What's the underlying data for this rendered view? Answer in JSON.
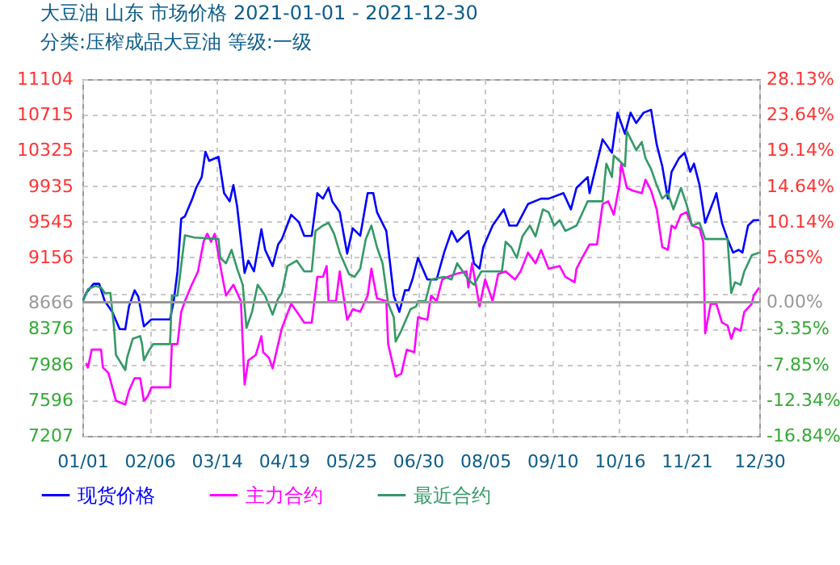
{
  "chart_data": {
    "type": "line",
    "title": "大豆油 山东 市场价格 2021-01-01 - 2021-12-30",
    "subtitle": "分类:压榨成品大豆油 等级:一级",
    "xlim": [
      "2021-01-01",
      "2021-12-30"
    ],
    "xticks": [
      {
        "value": "2021-01-01",
        "label": "01/01"
      },
      {
        "value": "2021-02-06",
        "label": "02/06"
      },
      {
        "value": "2021-03-14",
        "label": "03/14"
      },
      {
        "value": "2021-04-19",
        "label": "04/19"
      },
      {
        "value": "2021-05-25",
        "label": "05/25"
      },
      {
        "value": "2021-06-30",
        "label": "06/30"
      },
      {
        "value": "2021-08-05",
        "label": "08/05"
      },
      {
        "value": "2021-09-10",
        "label": "09/10"
      },
      {
        "value": "2021-10-16",
        "label": "10/16"
      },
      {
        "value": "2021-11-21",
        "label": "11/21"
      },
      {
        "value": "2021-12-30",
        "label": "12/30"
      }
    ],
    "ylim": [
      7207,
      11104
    ],
    "yticks": [
      7207,
      7596,
      7986,
      8376,
      8666,
      {
        "value": 8766,
        "label": null
      },
      9156,
      9545,
      9935,
      10325,
      10715,
      11104
    ],
    "y2lim": [
      -16.84,
      28.13
    ],
    "y2ticks": [
      {
        "value": -16.84,
        "label": "-16.84%"
      },
      {
        "value": -12.34,
        "label": "-12.34%"
      },
      {
        "value": -7.85,
        "label": "-7.85%"
      },
      {
        "value": -3.35,
        "label": "-3.35%"
      },
      {
        "value": 0,
        "label": "0.00%"
      },
      {
        "value": 5.65,
        "label": "5.65%"
      },
      {
        "value": 10.14,
        "label": "10.14%"
      },
      {
        "value": 14.64,
        "label": "14.64%"
      },
      {
        "value": 19.14,
        "label": "19.14%"
      },
      {
        "value": 23.64,
        "label": "23.64%"
      },
      {
        "value": 28.13,
        "label": "28.13%"
      }
    ],
    "grid": true,
    "legend": "bottom",
    "ref_lines": [
      {
        "axis": "y2",
        "value": 0,
        "color": "#999999"
      }
    ],
    "series": [
      {
        "name": "现货价格",
        "color": "#0000ff",
        "x": [
          "2021-01-01",
          "2021-01-03",
          "2021-01-07",
          "2021-01-10",
          "2021-01-13",
          "2021-01-17",
          "2021-01-21",
          "2021-01-24",
          "2021-01-26",
          "2021-01-29",
          "2021-01-31",
          "2021-02-03",
          "2021-02-07",
          "2021-02-17",
          "2021-02-19",
          "2021-02-21",
          "2021-02-23",
          "2021-02-25",
          "2021-03-01",
          "2021-03-03",
          "2021-03-06",
          "2021-03-08",
          "2021-03-10",
          "2021-03-15",
          "2021-03-18",
          "2021-03-21",
          "2021-03-23",
          "2021-03-25",
          "2021-03-29",
          "2021-03-31",
          "2021-04-03",
          "2021-04-07",
          "2021-04-09",
          "2021-04-13",
          "2021-04-16",
          "2021-04-18",
          "2021-04-23",
          "2021-04-27",
          "2021-04-30",
          "2021-05-04",
          "2021-05-07",
          "2021-05-10",
          "2021-05-13",
          "2021-05-15",
          "2021-05-19",
          "2021-05-23",
          "2021-05-26",
          "2021-05-30",
          "2021-06-03",
          "2021-06-06",
          "2021-06-08",
          "2021-06-13",
          "2021-06-17",
          "2021-06-20",
          "2021-06-23",
          "2021-06-25",
          "2021-06-27",
          "2021-06-30",
          "2021-07-05",
          "2021-07-10",
          "2021-07-14",
          "2021-07-18",
          "2021-07-21",
          "2021-07-27",
          "2021-07-30",
          "2021-08-02",
          "2021-08-04",
          "2021-08-09",
          "2021-08-15",
          "2021-08-18",
          "2021-08-22",
          "2021-08-28",
          "2021-09-04",
          "2021-09-08",
          "2021-09-16",
          "2021-09-20",
          "2021-09-23",
          "2021-09-29",
          "2021-09-30",
          "2021-10-07",
          "2021-10-12",
          "2021-10-15",
          "2021-10-19",
          "2021-10-22",
          "2021-10-25",
          "2021-10-29",
          "2021-11-02",
          "2021-11-05",
          "2021-11-08",
          "2021-11-11",
          "2021-11-13",
          "2021-11-17",
          "2021-11-20",
          "2021-11-23",
          "2021-11-25",
          "2021-11-28",
          "2021-12-01",
          "2021-12-06",
          "2021-12-07",
          "2021-12-10",
          "2021-12-13",
          "2021-12-16",
          "2021-12-19",
          "2021-12-21",
          "2021-12-24",
          "2021-12-27",
          "2021-12-30"
        ],
        "values": [
          8666,
          8767,
          8868,
          8868,
          8679,
          8562,
          8373,
          8373,
          8621,
          8797,
          8726,
          8403,
          8479,
          8479,
          8679,
          9004,
          9580,
          9605,
          9798,
          9916,
          10034,
          10311,
          10211,
          10255,
          9858,
          9769,
          9946,
          9711,
          8986,
          9121,
          9004,
          9463,
          9239,
          9062,
          9298,
          9357,
          9622,
          9545,
          9392,
          9392,
          9858,
          9798,
          9916,
          9769,
          9651,
          9198,
          9474,
          9392,
          9858,
          9858,
          9651,
          9445,
          8739,
          8562,
          8797,
          8797,
          8915,
          9151,
          8915,
          8915,
          9209,
          9445,
          9327,
          9445,
          9092,
          9033,
          9268,
          9504,
          9681,
          9504,
          9504,
          9739,
          9798,
          9798,
          9858,
          9681,
          9916,
          10034,
          9858,
          10446,
          10299,
          10737,
          10506,
          10737,
          10624,
          10737,
          10769,
          10391,
          10152,
          9798,
          10092,
          10240,
          10299,
          10092,
          10181,
          9946,
          9534,
          9798,
          9858,
          9534,
          9357,
          9209,
          9239,
          9209,
          9504,
          9563,
          9563
        ]
      },
      {
        "name": "主力合约",
        "color": "#ff00ff",
        "x": [
          "2021-01-03",
          "2021-01-04",
          "2021-01-06",
          "2021-01-11",
          "2021-01-12",
          "2021-01-15",
          "2021-01-19",
          "2021-01-24",
          "2021-01-26",
          "2021-01-29",
          "2021-02-01",
          "2021-02-03",
          "2021-02-05",
          "2021-02-07",
          "2021-02-17",
          "2021-02-18",
          "2021-02-21",
          "2021-02-23",
          "2021-02-25",
          "2021-02-28",
          "2021-03-04",
          "2021-03-07",
          "2021-03-09",
          "2021-03-11",
          "2021-03-13",
          "2021-03-16",
          "2021-03-19",
          "2021-03-23",
          "2021-03-27",
          "2021-03-29",
          "2021-03-31",
          "2021-04-04",
          "2021-04-07",
          "2021-04-08",
          "2021-04-11",
          "2021-04-13",
          "2021-04-16",
          "2021-04-18",
          "2021-04-23",
          "2021-04-26",
          "2021-04-30",
          "2021-05-04",
          "2021-05-07",
          "2021-05-10",
          "2021-05-12",
          "2021-05-13",
          "2021-05-17",
          "2021-05-19",
          "2021-05-23",
          "2021-05-26",
          "2021-05-30",
          "2021-06-03",
          "2021-06-05",
          "2021-06-08",
          "2021-06-13",
          "2021-06-14",
          "2021-06-18",
          "2021-06-21",
          "2021-06-24",
          "2021-06-28",
          "2021-06-30",
          "2021-07-05",
          "2021-07-07",
          "2021-07-10",
          "2021-07-13",
          "2021-07-16",
          "2021-07-20",
          "2021-07-26",
          "2021-07-27",
          "2021-07-29",
          "2021-08-02",
          "2021-08-05",
          "2021-08-09",
          "2021-08-12",
          "2021-08-16",
          "2021-08-21",
          "2021-08-24",
          "2021-08-28",
          "2021-09-01",
          "2021-09-04",
          "2021-09-08",
          "2021-09-14",
          "2021-09-17",
          "2021-09-22",
          "2021-09-23",
          "2021-09-26",
          "2021-09-30",
          "2021-10-04",
          "2021-10-07",
          "2021-10-10",
          "2021-10-13",
          "2021-10-16",
          "2021-10-17",
          "2021-10-20",
          "2021-10-23",
          "2021-10-28",
          "2021-10-30",
          "2021-11-02",
          "2021-11-05",
          "2021-11-08",
          "2021-11-11",
          "2021-11-13",
          "2021-11-15",
          "2021-11-18",
          "2021-11-21",
          "2021-11-24",
          "2021-11-28",
          "2021-11-30",
          "2021-12-01",
          "2021-12-04",
          "2021-12-07",
          "2021-12-10",
          "2021-12-13",
          "2021-12-15",
          "2021-12-17",
          "2021-12-20",
          "2021-12-22",
          "2021-12-26",
          "2021-12-27",
          "2021-12-30"
        ],
        "values": [
          8002,
          7953,
          8149,
          8149,
          7953,
          7894,
          7590,
          7549,
          7700,
          7838,
          7838,
          7590,
          7637,
          7737,
          7737,
          8209,
          8209,
          8562,
          8679,
          8827,
          9004,
          9327,
          9415,
          9327,
          9415,
          9062,
          8739,
          8857,
          8679,
          7767,
          8032,
          8091,
          8297,
          8120,
          8061,
          7944,
          8209,
          8385,
          8650,
          8562,
          8444,
          8444,
          8944,
          8944,
          9062,
          8679,
          8679,
          9004,
          8474,
          8591,
          8562,
          8739,
          9033,
          8709,
          8679,
          8209,
          7855,
          7885,
          8149,
          8120,
          8502,
          8474,
          8739,
          8679,
          8915,
          8944,
          8974,
          9004,
          8827,
          9092,
          8621,
          8915,
          8679,
          8974,
          9004,
          8915,
          9004,
          9209,
          9092,
          9239,
          9033,
          9062,
          8944,
          8885,
          9033,
          9151,
          9298,
          9298,
          9739,
          9769,
          9622,
          9946,
          10181,
          9916,
          9887,
          9858,
          10005,
          9887,
          9681,
          9269,
          9239,
          9504,
          9474,
          9622,
          9651,
          9504,
          9474,
          9327,
          8326,
          8650,
          8650,
          8444,
          8414,
          8267,
          8385,
          8355,
          8562,
          8650,
          8739,
          8827
        ]
      },
      {
        "name": "最近合约",
        "color": "#339966",
        "x": [
          "2021-01-01",
          "2021-01-04",
          "2021-01-08",
          "2021-01-11",
          "2021-01-13",
          "2021-01-16",
          "2021-01-18",
          "2021-01-19",
          "2021-01-24",
          "2021-01-25",
          "2021-01-28",
          "2021-02-01",
          "2021-02-02",
          "2021-02-03",
          "2021-02-06",
          "2021-02-08",
          "2021-02-17",
          "2021-02-18",
          "2021-02-21",
          "2021-02-25",
          "2021-03-02",
          "2021-03-15",
          "2021-03-16",
          "2021-03-19",
          "2021-03-22",
          "2021-03-25",
          "2021-03-28",
          "2021-03-30",
          "2021-04-02",
          "2021-04-05",
          "2021-04-09",
          "2021-04-13",
          "2021-04-16",
          "2021-04-18",
          "2021-04-21",
          "2021-04-26",
          "2021-04-30",
          "2021-05-04",
          "2021-05-06",
          "2021-05-10",
          "2021-05-13",
          "2021-05-16",
          "2021-05-19",
          "2021-05-24",
          "2021-05-27",
          "2021-05-30",
          "2021-06-02",
          "2021-06-05",
          "2021-06-08",
          "2021-06-11",
          "2021-06-14",
          "2021-06-17",
          "2021-06-18",
          "2021-06-21",
          "2021-06-26",
          "2021-06-29",
          "2021-06-30",
          "2021-07-04",
          "2021-07-07",
          "2021-07-14",
          "2021-07-18",
          "2021-07-21",
          "2021-07-27",
          "2021-07-30",
          "2021-08-03",
          "2021-08-14",
          "2021-08-16",
          "2021-08-19",
          "2021-08-22",
          "2021-08-25",
          "2021-08-29",
          "2021-09-01",
          "2021-09-05",
          "2021-09-08",
          "2021-09-11",
          "2021-09-14",
          "2021-09-17",
          "2021-09-23",
          "2021-09-29",
          "2021-10-07",
          "2021-10-09",
          "2021-10-12",
          "2021-10-13",
          "2021-10-19",
          "2021-10-20",
          "2021-10-25",
          "2021-10-28",
          "2021-10-30",
          "2021-11-02",
          "2021-11-05",
          "2021-11-08",
          "2021-11-11",
          "2021-11-14",
          "2021-11-18",
          "2021-11-21",
          "2021-11-24",
          "2021-11-28",
          "2021-12-01",
          "2021-12-13",
          "2021-12-15",
          "2021-12-17",
          "2021-12-20",
          "2021-12-22",
          "2021-12-26",
          "2021-12-30"
        ],
        "values": [
          8666,
          8809,
          8844,
          8827,
          8768,
          8768,
          8385,
          8091,
          7926,
          8061,
          8267,
          8297,
          8209,
          8032,
          8149,
          8209,
          8209,
          8739,
          8739,
          9398,
          9374,
          9357,
          9151,
          9092,
          9239,
          9033,
          8857,
          8385,
          8562,
          8857,
          8739,
          8532,
          8709,
          8768,
          9062,
          9121,
          9004,
          9004,
          9445,
          9504,
          9534,
          9415,
          9209,
          8974,
          8944,
          9033,
          9357,
          9504,
          9268,
          9092,
          8650,
          8503,
          8237,
          8355,
          8591,
          8621,
          8679,
          8679,
          8915,
          8944,
          8915,
          9092,
          8915,
          8857,
          9004,
          9004,
          9327,
          9268,
          9151,
          9386,
          9504,
          9386,
          9681,
          9651,
          9504,
          9563,
          9445,
          9504,
          9769,
          9769,
          10181,
          10034,
          10270,
          10152,
          10534,
          10329,
          10417,
          10240,
          10122,
          9946,
          9798,
          9858,
          9681,
          9916,
          9739,
          9504,
          9534,
          9357,
          9357,
          8767,
          8885,
          8857,
          9004,
          9180,
          9209
        ]
      }
    ]
  }
}
